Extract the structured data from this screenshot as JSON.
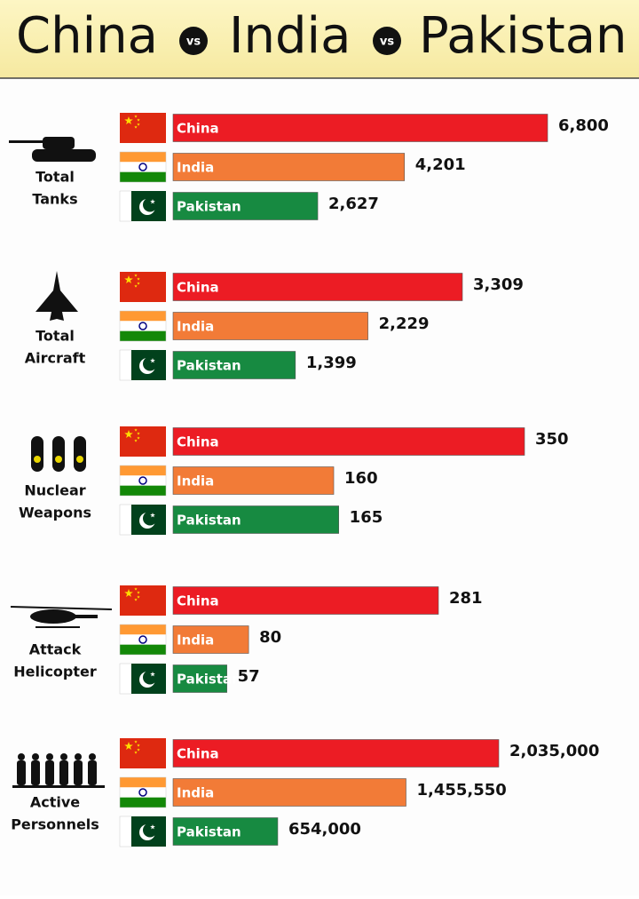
{
  "header": {
    "title_parts": [
      "China",
      "vs",
      "India",
      "vs",
      "Pakistan"
    ]
  },
  "countries": [
    {
      "name": "China",
      "color": "#ec1c24"
    },
    {
      "name": "India",
      "color": "#f27b37"
    },
    {
      "name": "Pakistan",
      "color": "#178a41"
    }
  ],
  "groups": [
    {
      "label": [
        "Total",
        "Tanks"
      ],
      "values": [
        6800,
        4201,
        2627
      ],
      "value_labels": [
        "6,800",
        "4,201",
        "2,627"
      ]
    },
    {
      "label": [
        "Total",
        "Aircraft"
      ],
      "values": [
        3309,
        2229,
        1399
      ],
      "value_labels": [
        "3,309",
        "2,229",
        "1,399"
      ]
    },
    {
      "label": [
        "Nuclear",
        "Weapons"
      ],
      "values": [
        350,
        160,
        165
      ],
      "value_labels": [
        "350",
        "160",
        "165"
      ]
    },
    {
      "label": [
        "Attack",
        "Helicopter"
      ],
      "values": [
        281,
        80,
        57
      ],
      "value_labels": [
        "281",
        "80",
        "57"
      ]
    },
    {
      "label": [
        "Active",
        "Personnels"
      ],
      "values": [
        2035000,
        1455550,
        654000
      ],
      "value_labels": [
        "2,035,000",
        "1,455,550",
        "654,000"
      ]
    }
  ]
}
